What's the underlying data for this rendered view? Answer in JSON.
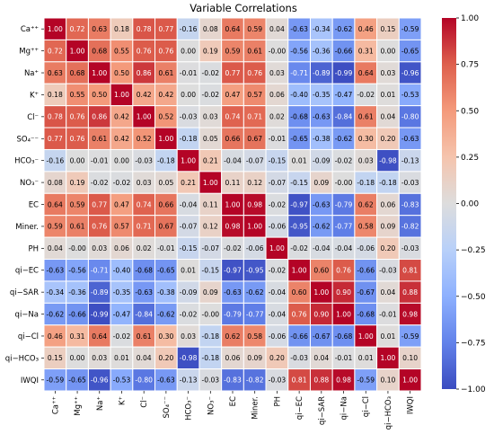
{
  "chart_data": {
    "type": "heatmap",
    "title": "Variable Correlations",
    "labels": [
      "Ca⁺⁺",
      "Mg⁺⁺",
      "Na⁺",
      "K⁺",
      "Cl⁻",
      "SO₄⁻⁻",
      "HCO₃⁻",
      "NO₃⁻",
      "EC",
      "Miner.",
      "PH",
      "qi−EC",
      "qi−SAR",
      "qi−Na",
      "qi−Cl",
      "qi−HCO₃",
      "IWQI"
    ],
    "values": [
      [
        1.0,
        0.72,
        0.63,
        0.18,
        0.78,
        0.77,
        -0.16,
        0.08,
        0.64,
        0.59,
        0.04,
        -0.63,
        -0.34,
        -0.62,
        0.46,
        0.15,
        -0.59
      ],
      [
        0.72,
        1.0,
        0.68,
        0.55,
        0.76,
        0.76,
        0.0,
        0.19,
        0.59,
        0.61,
        -0.0,
        -0.56,
        -0.36,
        -0.66,
        0.31,
        0.0,
        -0.65
      ],
      [
        0.63,
        0.68,
        1.0,
        0.5,
        0.86,
        0.61,
        -0.01,
        -0.02,
        0.77,
        0.76,
        0.03,
        -0.71,
        -0.89,
        -0.99,
        0.64,
        0.03,
        -0.96
      ],
      [
        0.18,
        0.55,
        0.5,
        1.0,
        0.42,
        0.42,
        0.0,
        -0.02,
        0.47,
        0.57,
        0.06,
        -0.4,
        -0.35,
        -0.47,
        -0.02,
        0.01,
        -0.53
      ],
      [
        0.78,
        0.76,
        0.86,
        0.42,
        1.0,
        0.52,
        -0.03,
        0.03,
        0.74,
        0.71,
        0.02,
        -0.68,
        -0.63,
        -0.84,
        0.61,
        0.04,
        -0.8
      ],
      [
        0.77,
        0.76,
        0.61,
        0.42,
        0.52,
        1.0,
        -0.18,
        0.05,
        0.66,
        0.67,
        -0.01,
        -0.65,
        -0.38,
        -0.62,
        0.3,
        0.2,
        -0.63
      ],
      [
        -0.16,
        0.0,
        -0.01,
        0.0,
        -0.03,
        -0.18,
        1.0,
        0.21,
        -0.04,
        -0.07,
        -0.15,
        0.01,
        -0.09,
        -0.02,
        0.03,
        -0.98,
        -0.13
      ],
      [
        0.08,
        0.19,
        -0.02,
        -0.02,
        0.03,
        0.05,
        0.21,
        1.0,
        0.11,
        0.12,
        -0.07,
        -0.15,
        0.09,
        -0.0,
        -0.18,
        -0.18,
        -0.03
      ],
      [
        0.64,
        0.59,
        0.77,
        0.47,
        0.74,
        0.66,
        -0.04,
        0.11,
        1.0,
        0.98,
        -0.02,
        -0.97,
        -0.63,
        -0.79,
        0.62,
        0.06,
        -0.83
      ],
      [
        0.59,
        0.61,
        0.76,
        0.57,
        0.71,
        0.67,
        -0.07,
        0.12,
        0.98,
        1.0,
        -0.06,
        -0.95,
        -0.62,
        -0.77,
        0.58,
        0.09,
        -0.82
      ],
      [
        0.04,
        -0.0,
        0.03,
        0.06,
        0.02,
        -0.01,
        -0.15,
        -0.07,
        -0.02,
        -0.06,
        1.0,
        -0.02,
        -0.04,
        -0.04,
        -0.06,
        0.2,
        -0.03
      ],
      [
        -0.63,
        -0.56,
        -0.71,
        -0.4,
        -0.68,
        -0.65,
        0.01,
        -0.15,
        -0.97,
        -0.95,
        -0.02,
        1.0,
        0.6,
        0.76,
        -0.66,
        -0.03,
        0.81
      ],
      [
        -0.34,
        -0.36,
        -0.89,
        -0.35,
        -0.63,
        -0.38,
        -0.09,
        0.09,
        -0.63,
        -0.62,
        -0.04,
        0.6,
        1.0,
        0.9,
        -0.67,
        0.04,
        0.88
      ],
      [
        -0.62,
        -0.66,
        -0.99,
        -0.47,
        -0.84,
        -0.62,
        -0.02,
        -0.0,
        -0.79,
        -0.77,
        -0.04,
        0.76,
        0.9,
        1.0,
        -0.68,
        -0.01,
        0.98
      ],
      [
        0.46,
        0.31,
        0.64,
        -0.02,
        0.61,
        0.3,
        0.03,
        -0.18,
        0.62,
        0.58,
        -0.06,
        -0.66,
        -0.67,
        -0.68,
        1.0,
        0.01,
        -0.59
      ],
      [
        0.15,
        0.0,
        0.03,
        0.01,
        0.04,
        0.2,
        -0.98,
        -0.18,
        0.06,
        0.09,
        0.2,
        -0.03,
        0.04,
        -0.01,
        0.01,
        1.0,
        0.1
      ],
      [
        -0.59,
        -0.65,
        -0.96,
        -0.53,
        -0.8,
        -0.63,
        -0.13,
        -0.03,
        -0.83,
        -0.82,
        -0.03,
        0.81,
        0.88,
        0.98,
        -0.59,
        0.1,
        1.0
      ]
    ],
    "colorbar": {
      "min": -1.0,
      "max": 1.0,
      "ticks": [
        1.0,
        0.75,
        0.5,
        0.25,
        0.0,
        -0.25,
        -0.5,
        -0.75,
        -1.0
      ],
      "tick_labels": [
        "1.00",
        "0.75",
        "0.50",
        "0.25",
        "0.00",
        "−0.25",
        "−0.50",
        "−0.75",
        "−1.00"
      ],
      "colormap": "coolwarm",
      "placement": "right"
    },
    "annotations": "cell values shown with 2 decimals",
    "colors": {
      "low": "#3b4cc0",
      "mid": "#dddddd",
      "high": "#b40426",
      "grid_line": "#ffffff"
    }
  }
}
